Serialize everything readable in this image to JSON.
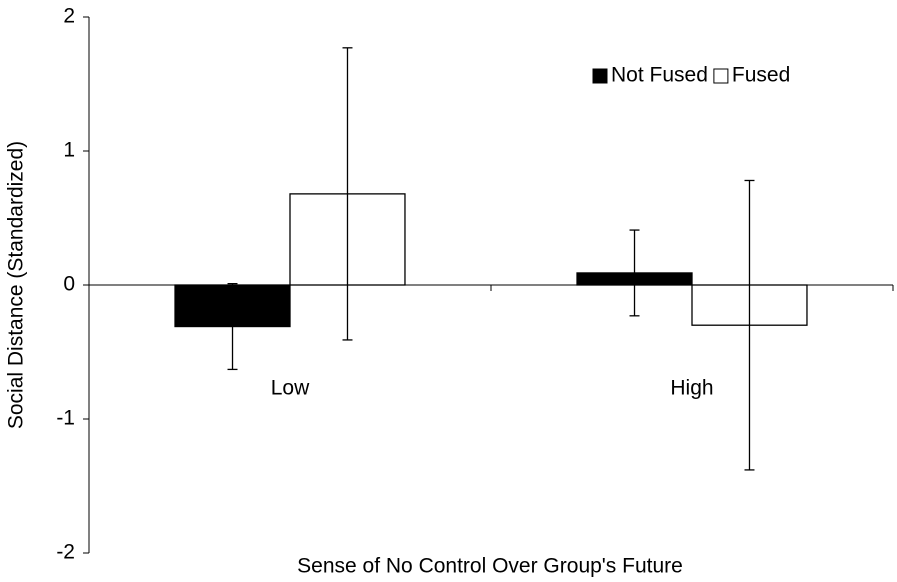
{
  "chart_data": {
    "type": "bar",
    "x_label": "Sense of No Control Over Group's Future",
    "y_label": "Social Distance (Standardized)",
    "categories": [
      "Low",
      "High"
    ],
    "series": [
      {
        "name": "Not Fused",
        "color": "#000000",
        "values": [
          -0.31,
          0.09
        ],
        "errors": [
          0.32,
          0.32
        ]
      },
      {
        "name": "Fused",
        "color": "#ffffff",
        "values": [
          0.68,
          -0.3
        ],
        "errors": [
          1.09,
          1.08
        ]
      }
    ],
    "ylim": [
      -2,
      2
    ],
    "yticks": [
      -2,
      -1,
      0,
      1,
      2
    ],
    "legend": "upper right"
  }
}
